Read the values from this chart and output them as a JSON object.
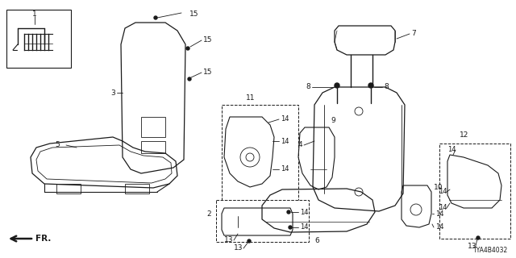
{
  "diagram_code": "TYA4B4032",
  "background_color": "#ffffff",
  "line_color": "#1a1a1a",
  "fig_width": 6.4,
  "fig_height": 3.2,
  "dpi": 100,
  "font_size": 6.5
}
